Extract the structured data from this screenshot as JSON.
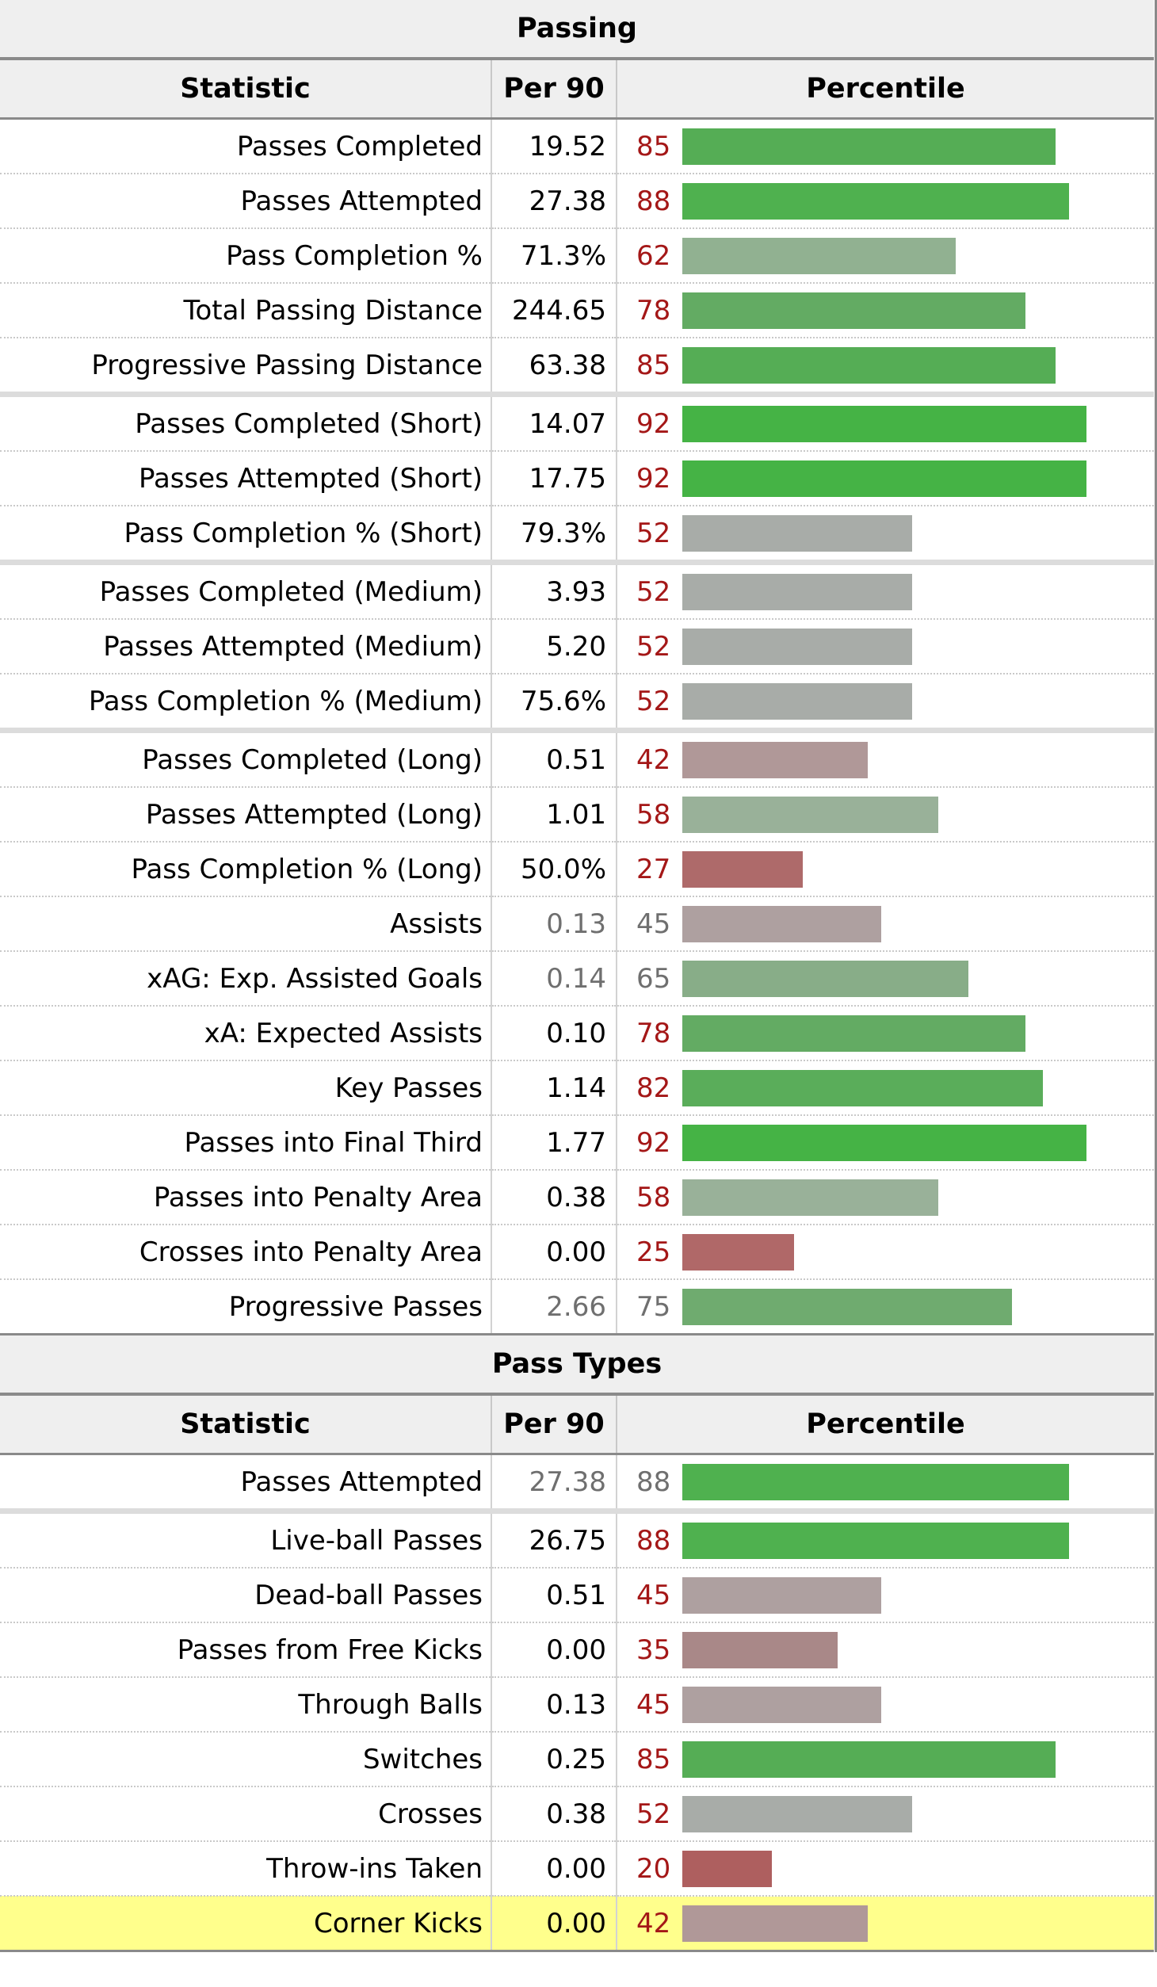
{
  "headers": {
    "statistic": "Statistic",
    "per90": "Per 90",
    "percentile": "Percentile"
  },
  "sections": [
    {
      "title": "Passing",
      "rows": [
        {
          "stat": "Passes Completed",
          "per90": "19.52",
          "pct": 85,
          "color": "#55ad55"
        },
        {
          "stat": "Passes Attempted",
          "per90": "27.38",
          "pct": 88,
          "color": "#4fb14f"
        },
        {
          "stat": "Pass Completion %",
          "per90": "71.3%",
          "pct": 62,
          "color": "#91b191"
        },
        {
          "stat": "Total Passing Distance",
          "per90": "244.65",
          "pct": 78,
          "color": "#63ab63"
        },
        {
          "stat": "Progressive Passing Distance",
          "per90": "63.38",
          "pct": 85,
          "color": "#55ad55"
        },
        {
          "stat": "Passes Completed (Short)",
          "per90": "14.07",
          "pct": 92,
          "color": "#45b345",
          "gap": true
        },
        {
          "stat": "Passes Attempted (Short)",
          "per90": "17.75",
          "pct": 92,
          "color": "#45b345"
        },
        {
          "stat": "Pass Completion % (Short)",
          "per90": "79.3%",
          "pct": 52,
          "color": "#a8aca8"
        },
        {
          "stat": "Passes Completed (Medium)",
          "per90": "3.93",
          "pct": 52,
          "color": "#a8aca8",
          "gap": true
        },
        {
          "stat": "Passes Attempted (Medium)",
          "per90": "5.20",
          "pct": 52,
          "color": "#a8aca8"
        },
        {
          "stat": "Pass Completion % (Medium)",
          "per90": "75.6%",
          "pct": 52,
          "color": "#a8aca8"
        },
        {
          "stat": "Passes Completed (Long)",
          "per90": "0.51",
          "pct": 42,
          "color": "#b09898",
          "gap": true
        },
        {
          "stat": "Passes Attempted (Long)",
          "per90": "1.01",
          "pct": 58,
          "color": "#99b199"
        },
        {
          "stat": "Pass Completion % (Long)",
          "per90": "50.0%",
          "pct": 27,
          "color": "#ae6a6a"
        },
        {
          "stat": "Assists",
          "per90": "0.13",
          "pct": 45,
          "color": "#aea0a0",
          "dim": true
        },
        {
          "stat": "xAG: Exp. Assisted Goals",
          "per90": "0.14",
          "pct": 65,
          "color": "#88ad88",
          "dim": true
        },
        {
          "stat": "xA: Expected Assists",
          "per90": "0.10",
          "pct": 78,
          "color": "#63ab63"
        },
        {
          "stat": "Key Passes",
          "per90": "1.14",
          "pct": 82,
          "color": "#5aad5a"
        },
        {
          "stat": "Passes into Final Third",
          "per90": "1.77",
          "pct": 92,
          "color": "#45b345"
        },
        {
          "stat": "Passes into Penalty Area",
          "per90": "0.38",
          "pct": 58,
          "color": "#99b199"
        },
        {
          "stat": "Crosses into Penalty Area",
          "per90": "0.00",
          "pct": 25,
          "color": "#b06868"
        },
        {
          "stat": "Progressive Passes",
          "per90": "2.66",
          "pct": 75,
          "color": "#6fab6f",
          "dim": true
        }
      ]
    },
    {
      "title": "Pass Types",
      "rows": [
        {
          "stat": "Passes Attempted",
          "per90": "27.38",
          "pct": 88,
          "color": "#4fb14f",
          "dim": true
        },
        {
          "stat": "Live-ball Passes",
          "per90": "26.75",
          "pct": 88,
          "color": "#4fb14f",
          "gap": true
        },
        {
          "stat": "Dead-ball Passes",
          "per90": "0.51",
          "pct": 45,
          "color": "#aea0a0"
        },
        {
          "stat": "Passes from Free Kicks",
          "per90": "0.00",
          "pct": 35,
          "color": "#a98888"
        },
        {
          "stat": "Through Balls",
          "per90": "0.13",
          "pct": 45,
          "color": "#aea0a0"
        },
        {
          "stat": "Switches",
          "per90": "0.25",
          "pct": 85,
          "color": "#55ad55"
        },
        {
          "stat": "Crosses",
          "per90": "0.38",
          "pct": 52,
          "color": "#a8aca8"
        },
        {
          "stat": "Throw-ins Taken",
          "per90": "0.00",
          "pct": 20,
          "color": "#ae5f5f"
        },
        {
          "stat": "Corner Kicks",
          "per90": "0.00",
          "pct": 42,
          "color": "#b09898",
          "highlight": true
        }
      ]
    }
  ]
}
